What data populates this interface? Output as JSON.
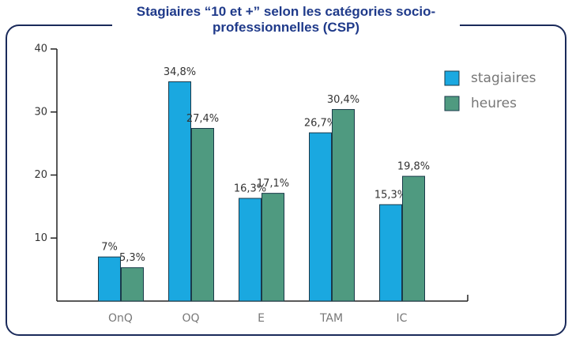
{
  "chart_data": {
    "type": "bar",
    "title": "Stagiaires “10 et +” selon les catégories socio-professionnelles (CSP)",
    "categories": [
      "OnQ",
      "OQ",
      "E",
      "TAM",
      "IC"
    ],
    "series": [
      {
        "name": "stagiaires",
        "color": "#1aa8e0",
        "values": [
          7,
          34.8,
          16.3,
          26.7,
          15.3
        ],
        "value_labels": [
          "7%",
          "34,8%",
          "16,3%",
          "26,7%",
          "15,3%"
        ]
      },
      {
        "name": "heures",
        "color": "#4f9a80",
        "values": [
          5.3,
          27.4,
          17.1,
          30.4,
          19.8
        ],
        "value_labels": [
          "5,3%",
          "27,4%",
          "17,1%",
          "30,4%",
          "19,8%"
        ]
      }
    ],
    "ylim": [
      0,
      40
    ],
    "yticks": [
      10,
      20,
      30,
      40
    ],
    "grid": false,
    "legend": "top-right"
  }
}
